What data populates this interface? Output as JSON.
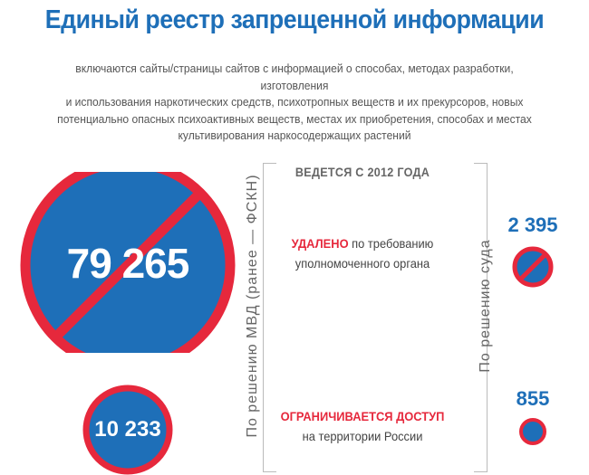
{
  "title": "Единый реестр запрещенной информации",
  "subtitle": [
    "включаются сайты/страницы сайтов с информацией о способах, методах разработки, изготовления",
    "и использования наркотических средств, психотропных веществ и их прекурсоров, новых",
    "потенциально опасных психоактивных веществ, местах их приобретения, способах и местах",
    "культивирования наркосодержащих растений"
  ],
  "since": "ВЕДЕТСЯ С 2012 ГОДА",
  "deleted": {
    "highlight": "УДАЛЕНО",
    "text1": "по требованию",
    "text2": "уполномоченного органа"
  },
  "restricted": {
    "highlight": "ОГРАНИЧИВАЕТСЯ ДОСТУП",
    "text": "на территории России"
  },
  "mvd": {
    "label": "По решению МВД (ранее — ФСКН)",
    "deleted_count": "79 265",
    "restricted_count": "10 233"
  },
  "court": {
    "label": "По решению суда",
    "deleted_count": "2 395",
    "restricted_count": "855"
  },
  "colors": {
    "blue": "#1e6fb8",
    "red": "#e6283c",
    "gray": "#666666"
  }
}
